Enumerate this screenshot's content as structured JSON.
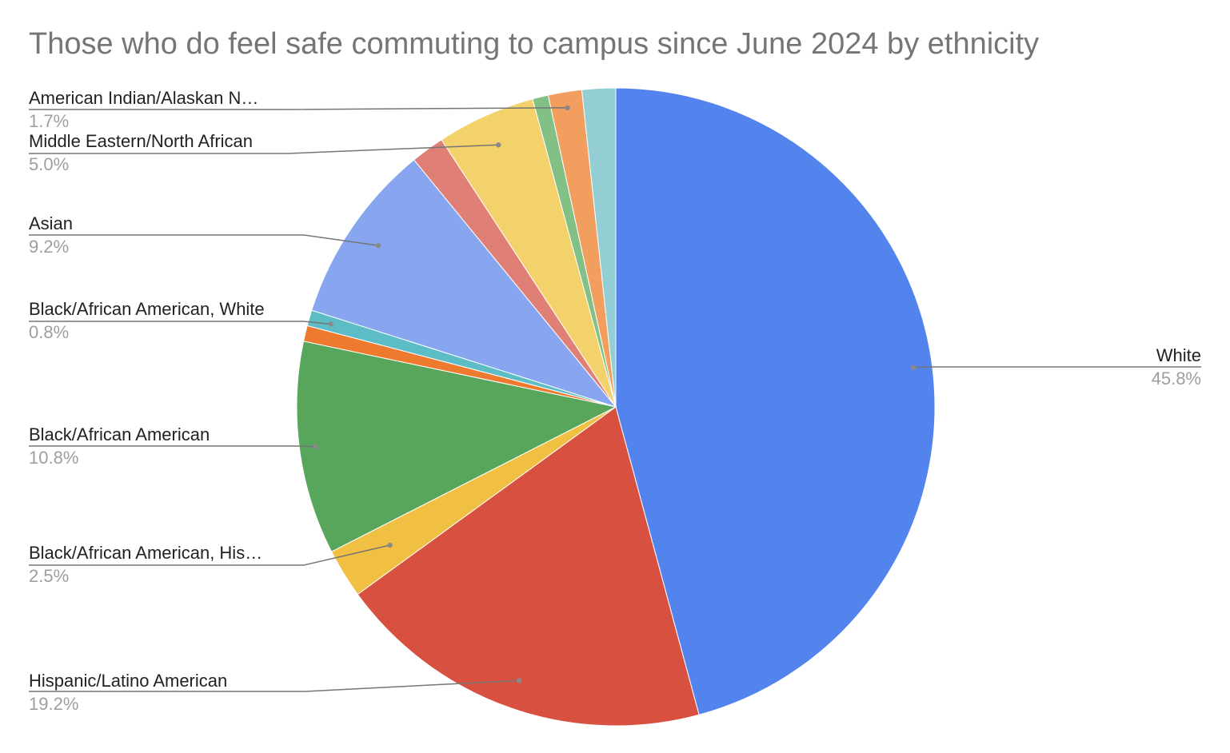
{
  "chart_data": {
    "type": "pie",
    "title": "Those who do feel safe commuting to campus since June 2024 by ethnicity",
    "slices": [
      {
        "label": "White",
        "value": 45.8,
        "value_label": "45.8%",
        "color": "#5383EC",
        "labeled": true
      },
      {
        "label": "Hispanic/Latino American",
        "value": 19.2,
        "value_label": "19.2%",
        "color": "#D85140",
        "labeled": true
      },
      {
        "label": "Black/African American, His…",
        "value": 2.5,
        "value_label": "2.5%",
        "color": "#F1BF42",
        "labeled": true
      },
      {
        "label": "Black/African American",
        "value": 10.8,
        "value_label": "10.8%",
        "color": "#58A65C",
        "labeled": true
      },
      {
        "label": "",
        "value": 0.8,
        "value_label": "",
        "color": "#EE7A30",
        "labeled": false
      },
      {
        "label": "Black/African American, White",
        "value": 0.8,
        "value_label": "0.8%",
        "color": "#5DBDC6",
        "labeled": true
      },
      {
        "label": "Asian",
        "value": 9.2,
        "value_label": "9.2%",
        "color": "#87A6EF",
        "labeled": true
      },
      {
        "label": "",
        "value": 1.7,
        "value_label": "",
        "color": "#E07F76",
        "labeled": false
      },
      {
        "label": "Middle Eastern/North African",
        "value": 5.0,
        "value_label": "5.0%",
        "color": "#F4D26B",
        "labeled": true
      },
      {
        "label": "",
        "value": 0.8,
        "value_label": "",
        "color": "#82C086",
        "labeled": false
      },
      {
        "label": "American Indian/Alaskan N…",
        "value": 1.7,
        "value_label": "1.7%",
        "color": "#F29E5F",
        "labeled": true
      },
      {
        "label": "",
        "value": 1.7,
        "value_label": "",
        "color": "#93CED5",
        "labeled": false
      }
    ],
    "legend": "none",
    "start_angle": "12 o'clock",
    "direction": "clockwise"
  }
}
